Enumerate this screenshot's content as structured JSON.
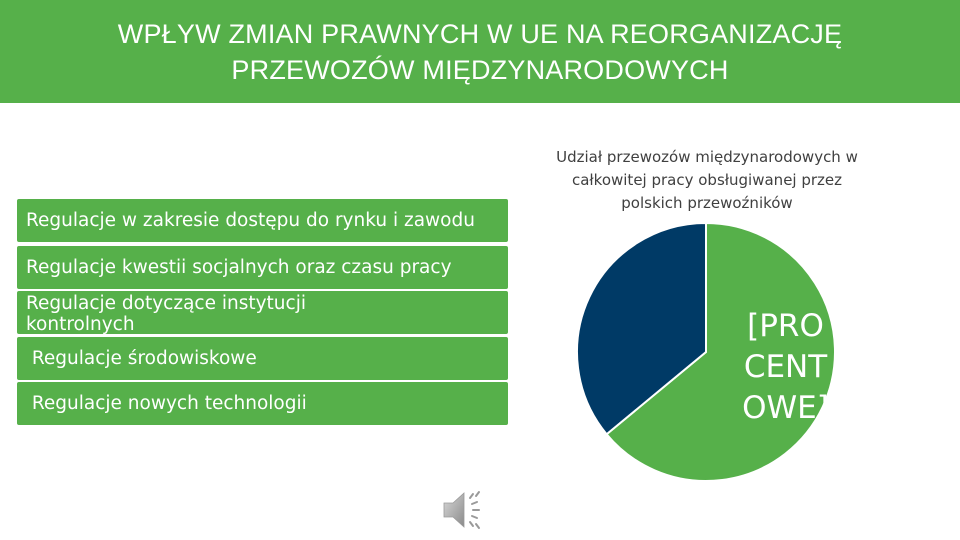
{
  "header": {
    "title_line1": "WPŁYW ZMIAN PRAWNYCH W UE NA REORGANIZACJĘ",
    "title_line2": "PRZEWOZÓW MIĘDZYNARODOWYCH"
  },
  "list": {
    "items": [
      {
        "label": "Regulacje w zakresie dostępu do rynku i zawodu"
      },
      {
        "label": "Regulacje kwestii socjalnych oraz czasu pracy"
      },
      {
        "label_line1": "Regulacje dotyczące  instytucji",
        "label_line2": "kontrolnych"
      },
      {
        "label": " Regulacje środowiskowe"
      },
      {
        "label": " Regulacje nowych technologii"
      }
    ]
  },
  "chart_data": {
    "type": "pie",
    "title": "Udział przewozów międzynarodowych w całkowitej pracy obsługiwanej przez polskich przewoźników",
    "slices": [
      {
        "value": 64,
        "color": "#56b04a",
        "label": "[PROCENTOWE]"
      },
      {
        "value": 36,
        "color": "#003a66",
        "label": ""
      }
    ]
  },
  "icons": {
    "speaker": "speaker-icon"
  },
  "colors": {
    "accent_green": "#56b04a",
    "navy": "#003a66"
  }
}
